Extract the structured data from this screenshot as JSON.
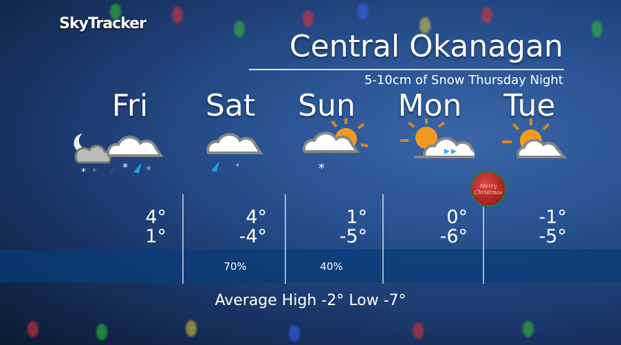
{
  "brand": "SkyTracker",
  "title": "Central Okanagan",
  "subtitle": "5-10cm of Snow Thursday Night",
  "days": [
    {
      "name": "Fri",
      "icon": "night-cloud-mixed-snow-rain-icon",
      "high": "4°",
      "low": "1°",
      "pop": ""
    },
    {
      "name": "Sat",
      "icon": "cloud-rain-icon",
      "high": "4°",
      "low": "-4°",
      "pop": "70%"
    },
    {
      "name": "Sun",
      "icon": "sun-cloud-flurry-icon",
      "high": "1°",
      "low": "-5°",
      "pop": "40%"
    },
    {
      "name": "Mon",
      "icon": "sun-cloud-wind-icon",
      "high": "0°",
      "low": "-6°",
      "pop": ""
    },
    {
      "name": "Tue",
      "icon": "sun-cloud-icon",
      "high": "-1°",
      "low": "-5°",
      "pop": ""
    }
  ],
  "average": "Average High -2° Low -7°",
  "ornament_text": "Merry Christmas",
  "colors": {
    "sun": "#f39a1e",
    "rain": "#1aa3e0",
    "band": "#0a3c78"
  }
}
